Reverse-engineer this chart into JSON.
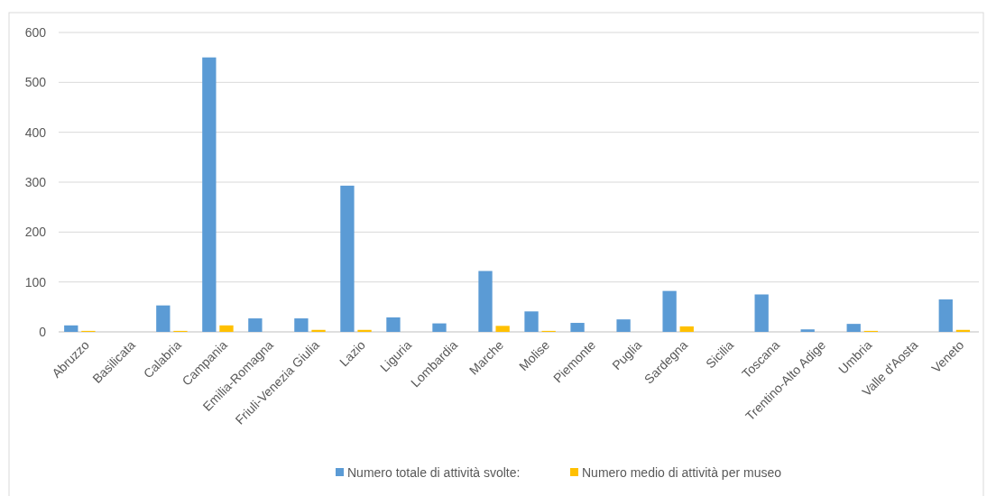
{
  "chart_data": {
    "type": "bar",
    "categories": [
      "Abruzzo",
      "Basilicata",
      "Calabria",
      "Campania",
      "Emilia-Romagna",
      "Friuli-Venezia Giulia",
      "Lazio",
      "Liguria",
      "Lombardia",
      "Marche",
      "Molise",
      "Piemonte",
      "Puglia",
      "Sardegna",
      "Sicilia",
      "Toscana",
      "Trentino-Alto Adige",
      "Umbria",
      "Valle d'Aosta",
      "Veneto"
    ],
    "series": [
      {
        "name": "Numero totale di attività svolte:",
        "color": "#5b9bd5",
        "values": [
          13,
          0,
          53,
          550,
          27,
          27,
          293,
          29,
          17,
          122,
          41,
          18,
          25,
          82,
          0,
          75,
          5,
          16,
          0,
          65
        ]
      },
      {
        "name": "Numero medio di attività per museo",
        "color": "#ffc000",
        "values": [
          2,
          0,
          2,
          13,
          0,
          4,
          4,
          0,
          0,
          12,
          2,
          0,
          0,
          11,
          0,
          0,
          0,
          2,
          0,
          4
        ]
      }
    ],
    "ylim": [
      0,
      600
    ],
    "yticks": [
      0,
      100,
      200,
      300,
      400,
      500,
      600
    ],
    "grid": "y",
    "legend": "bottom"
  }
}
